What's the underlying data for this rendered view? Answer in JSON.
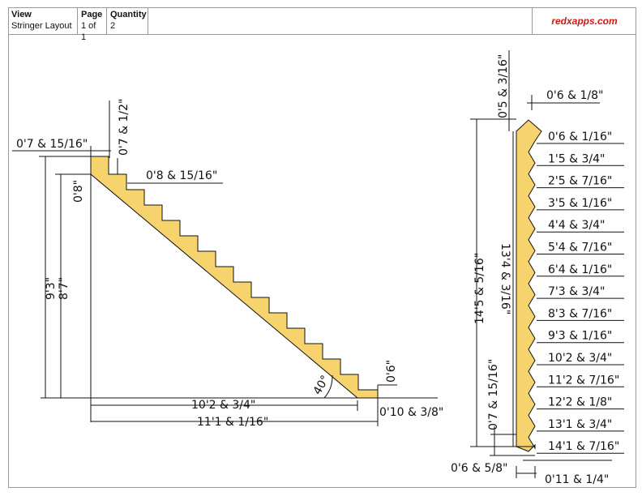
{
  "header": {
    "view_label": "View",
    "view_value": "Stringer Layout",
    "page_label": "Page",
    "page_value": "1 of 1",
    "quantity_label": "Quantity",
    "quantity_value": "2",
    "brand": "redxapps.com"
  },
  "colors": {
    "stringer_fill": "#f7d36d",
    "line": "#111111",
    "brand": "#cc1a1a"
  },
  "side_view": {
    "dims": {
      "top_tread": "0'7 & 15/16\"",
      "riser_top": "0'7 & 1/2\"",
      "first_riser": "0'8\"",
      "tread": "0'8 & 15/16\"",
      "total_height": "9'3\"",
      "rise": "8'7\"",
      "angle": "40°",
      "bottom_riser": "0'6\"",
      "run": "10'2 & 3/4\"",
      "bottom_tread": "0'10 & 3/8\"",
      "total_run": "11'1 & 1/16\""
    }
  },
  "board_view": {
    "top_offset": "0'5 & 3/16\"",
    "top_width": "0'6 & 1/8\"",
    "overall_length": "14'5 & 5/16\"",
    "inner_length": "13'4 & 3/16\"",
    "bottom_offset": "0'7 & 15/16\"",
    "bottom_width": "0'6 & 5/8\"",
    "bottom_length": "0'11 & 1/4\"",
    "step_marks": [
      "0'6 & 1/16\"",
      "1'5 & 3/4\"",
      "2'5 & 7/16\"",
      "3'5 & 1/16\"",
      "4'4 & 3/4\"",
      "5'4 & 7/16\"",
      "6'4 & 1/16\"",
      "7'3 & 3/4\"",
      "8'3 & 7/16\"",
      "9'3 & 1/16\"",
      "10'2 & 3/4\"",
      "11'2 & 7/16\"",
      "12'2 & 1/8\"",
      "13'1 & 3/4\"",
      "14'1 & 7/16\""
    ]
  }
}
